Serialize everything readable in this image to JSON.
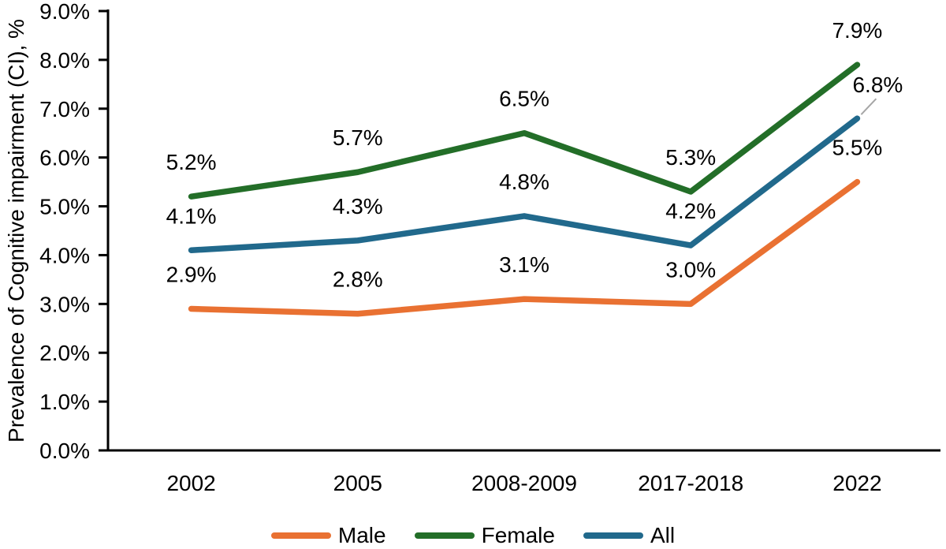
{
  "chart_data": {
    "type": "line",
    "title": "",
    "ylabel": "Prevalence of Cognitive impairment (CI), %",
    "xlabel": "",
    "categories": [
      "2002",
      "2005",
      "2008-2009",
      "2017-2018",
      "2022"
    ],
    "series": [
      {
        "name": "Male",
        "color": "#E97132",
        "values": [
          2.9,
          2.8,
          3.1,
          3.0,
          5.5
        ],
        "labels": [
          "2.9%",
          "2.8%",
          "3.1%",
          "3.0%",
          "5.5%"
        ]
      },
      {
        "name": "Female",
        "color": "#236E28",
        "values": [
          5.2,
          5.7,
          6.5,
          5.3,
          7.9
        ],
        "labels": [
          "5.2%",
          "5.7%",
          "6.5%",
          "5.3%",
          "7.9%"
        ]
      },
      {
        "name": "All",
        "color": "#21698C",
        "values": [
          4.1,
          4.3,
          4.8,
          4.2,
          6.8
        ],
        "labels": [
          "4.1%",
          "4.3%",
          "4.8%",
          "4.2%",
          "6.8%"
        ]
      }
    ],
    "y_ticks": [
      "0.0%",
      "1.0%",
      "2.0%",
      "3.0%",
      "4.0%",
      "5.0%",
      "6.0%",
      "7.0%",
      "8.0%",
      "9.0%"
    ],
    "ylim": [
      0,
      9
    ],
    "grid": false,
    "legend_position": "bottom",
    "legend": [
      "Male",
      "Female",
      "All"
    ],
    "axis_color": "#000000",
    "text_color": "#000000",
    "leader_line_color": "#A6A6A6",
    "background": "#FFFFFF"
  }
}
